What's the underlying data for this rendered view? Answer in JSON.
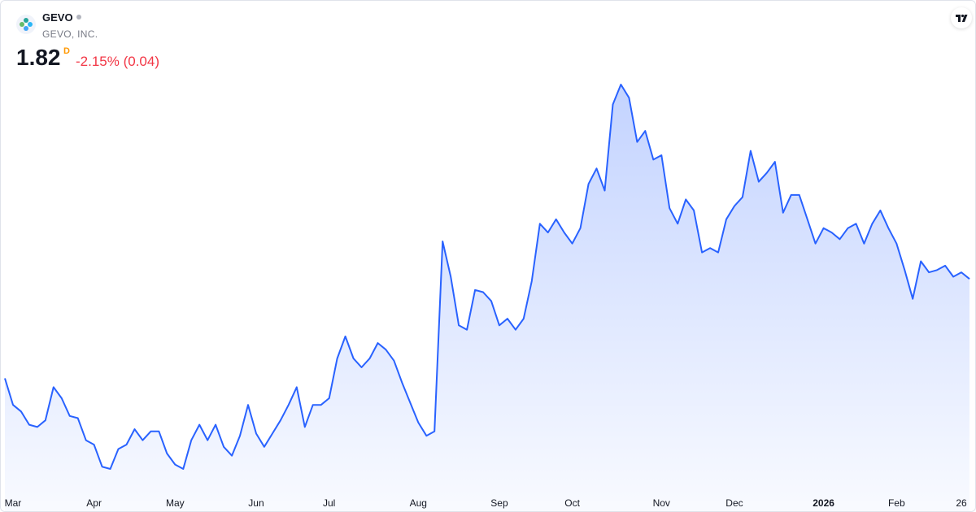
{
  "header": {
    "symbol": "GEVO",
    "company": "GEVO, INC.",
    "price": "1.82",
    "flag": "D",
    "change": "-2.15% (0.04)"
  },
  "chart_data": {
    "type": "area",
    "color": "#2962ff",
    "categories": [
      null,
      "Mar",
      null,
      null,
      null,
      null,
      null,
      null,
      null,
      null,
      null,
      "Apr",
      null,
      null,
      null,
      null,
      null,
      null,
      null,
      null,
      null,
      "May",
      null,
      null,
      null,
      null,
      null,
      null,
      null,
      null,
      null,
      "Jun",
      null,
      null,
      null,
      null,
      null,
      null,
      null,
      null,
      "Jul",
      null,
      null,
      null,
      null,
      null,
      null,
      null,
      null,
      null,
      null,
      "Aug",
      null,
      null,
      null,
      null,
      null,
      null,
      null,
      null,
      null,
      "Sep",
      null,
      null,
      null,
      null,
      null,
      null,
      null,
      null,
      "Oct",
      null,
      null,
      null,
      null,
      null,
      null,
      null,
      null,
      null,
      null,
      "Nov",
      null,
      null,
      null,
      null,
      null,
      null,
      null,
      null,
      "Dec",
      null,
      null,
      null,
      null,
      null,
      null,
      null,
      null,
      null,
      null,
      "2026",
      null,
      null,
      null,
      null,
      null,
      null,
      null,
      null,
      "Feb",
      null,
      null,
      null,
      null,
      null,
      null,
      null,
      "26",
      null
    ],
    "values": [
      1.37,
      1.25,
      1.22,
      1.16,
      1.15,
      1.18,
      1.33,
      1.28,
      1.2,
      1.19,
      1.09,
      1.07,
      0.97,
      0.96,
      1.05,
      1.07,
      1.14,
      1.09,
      1.13,
      1.13,
      1.03,
      0.98,
      0.96,
      1.09,
      1.16,
      1.09,
      1.16,
      1.06,
      1.02,
      1.11,
      1.25,
      1.12,
      1.06,
      1.12,
      1.18,
      1.25,
      1.33,
      1.15,
      1.25,
      1.25,
      1.28,
      1.46,
      1.56,
      1.46,
      1.42,
      1.46,
      1.53,
      1.5,
      1.45,
      1.35,
      1.26,
      1.17,
      1.11,
      1.13,
      1.99,
      1.83,
      1.61,
      1.59,
      1.77,
      1.76,
      1.72,
      1.61,
      1.64,
      1.59,
      1.64,
      1.81,
      2.07,
      2.03,
      2.09,
      2.03,
      1.98,
      2.05,
      2.25,
      2.32,
      2.22,
      2.61,
      2.7,
      2.64,
      2.44,
      2.49,
      2.36,
      2.38,
      2.14,
      2.07,
      2.18,
      2.13,
      1.94,
      1.96,
      1.94,
      2.09,
      2.15,
      2.19,
      2.4,
      2.26,
      2.3,
      2.35,
      2.12,
      2.2,
      2.2,
      2.09,
      1.98,
      2.05,
      2.03,
      2.0,
      2.05,
      2.07,
      1.98,
      2.07,
      2.13,
      2.05,
      1.98,
      1.86,
      1.73,
      1.9,
      1.85,
      1.86,
      1.88,
      1.83,
      1.85,
      1.82
    ]
  }
}
